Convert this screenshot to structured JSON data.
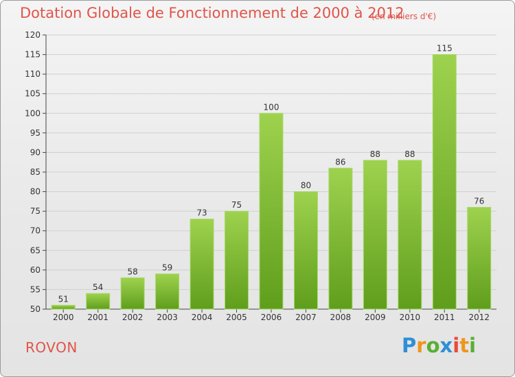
{
  "title": "Dotation Globale de Fonctionnement de 2000 à 2012",
  "subtitle": "(en milliers d'€)",
  "commune": "ROVON",
  "logo": {
    "letters": [
      "P",
      "r",
      "o",
      "x",
      "i",
      "t",
      "i"
    ],
    "colors": [
      "#2f8fd6",
      "#f0951c",
      "#58b030",
      "#2f8fd6",
      "#e94a3d",
      "#f0951c",
      "#58b030"
    ]
  },
  "chart_data": {
    "type": "bar",
    "title": "Dotation Globale de Fonctionnement de 2000 à 2012",
    "subtitle": "(en milliers d'€)",
    "categories": [
      "2000",
      "2001",
      "2002",
      "2003",
      "2004",
      "2005",
      "2006",
      "2007",
      "2008",
      "2009",
      "2010",
      "2011",
      "2012"
    ],
    "values": [
      51,
      54,
      58,
      59,
      73,
      75,
      100,
      80,
      86,
      88,
      88,
      115,
      76
    ],
    "ylim": [
      50,
      120
    ],
    "yticks": [
      50,
      55,
      60,
      65,
      70,
      75,
      80,
      85,
      90,
      95,
      100,
      105,
      110,
      115,
      120
    ],
    "grid": true,
    "bar_color": "#7cc135"
  }
}
